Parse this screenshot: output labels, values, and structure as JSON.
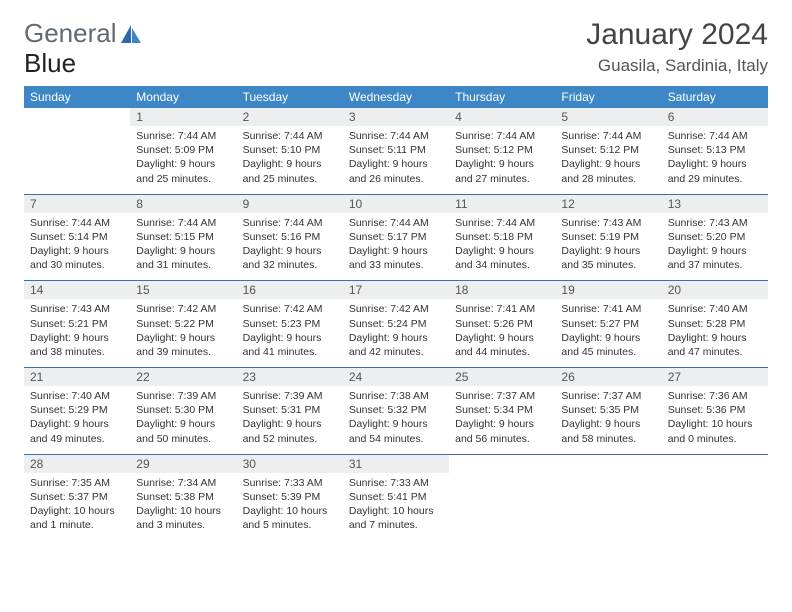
{
  "logo": {
    "text1": "General",
    "text2": "Blue"
  },
  "title": {
    "month": "January 2024",
    "location": "Guasila, Sardinia, Italy"
  },
  "colors": {
    "header_bg": "#3e87c6",
    "header_text": "#ffffff",
    "daynum_bg": "#eceef0",
    "row_border": "#3e6fa6",
    "logo_gray": "#5f6a72",
    "logo_blue": "#3e87c6",
    "page_bg": "#ffffff"
  },
  "fonts": {
    "title_size_pt": 22,
    "location_size_pt": 13,
    "header_size_pt": 9,
    "body_size_pt": 8
  },
  "days_of_week": [
    "Sunday",
    "Monday",
    "Tuesday",
    "Wednesday",
    "Thursday",
    "Friday",
    "Saturday"
  ],
  "weeks": [
    [
      null,
      {
        "n": "1",
        "sr": "Sunrise: 7:44 AM",
        "ss": "Sunset: 5:09 PM",
        "dl1": "Daylight: 9 hours",
        "dl2": "and 25 minutes."
      },
      {
        "n": "2",
        "sr": "Sunrise: 7:44 AM",
        "ss": "Sunset: 5:10 PM",
        "dl1": "Daylight: 9 hours",
        "dl2": "and 25 minutes."
      },
      {
        "n": "3",
        "sr": "Sunrise: 7:44 AM",
        "ss": "Sunset: 5:11 PM",
        "dl1": "Daylight: 9 hours",
        "dl2": "and 26 minutes."
      },
      {
        "n": "4",
        "sr": "Sunrise: 7:44 AM",
        "ss": "Sunset: 5:12 PM",
        "dl1": "Daylight: 9 hours",
        "dl2": "and 27 minutes."
      },
      {
        "n": "5",
        "sr": "Sunrise: 7:44 AM",
        "ss": "Sunset: 5:12 PM",
        "dl1": "Daylight: 9 hours",
        "dl2": "and 28 minutes."
      },
      {
        "n": "6",
        "sr": "Sunrise: 7:44 AM",
        "ss": "Sunset: 5:13 PM",
        "dl1": "Daylight: 9 hours",
        "dl2": "and 29 minutes."
      }
    ],
    [
      {
        "n": "7",
        "sr": "Sunrise: 7:44 AM",
        "ss": "Sunset: 5:14 PM",
        "dl1": "Daylight: 9 hours",
        "dl2": "and 30 minutes."
      },
      {
        "n": "8",
        "sr": "Sunrise: 7:44 AM",
        "ss": "Sunset: 5:15 PM",
        "dl1": "Daylight: 9 hours",
        "dl2": "and 31 minutes."
      },
      {
        "n": "9",
        "sr": "Sunrise: 7:44 AM",
        "ss": "Sunset: 5:16 PM",
        "dl1": "Daylight: 9 hours",
        "dl2": "and 32 minutes."
      },
      {
        "n": "10",
        "sr": "Sunrise: 7:44 AM",
        "ss": "Sunset: 5:17 PM",
        "dl1": "Daylight: 9 hours",
        "dl2": "and 33 minutes."
      },
      {
        "n": "11",
        "sr": "Sunrise: 7:44 AM",
        "ss": "Sunset: 5:18 PM",
        "dl1": "Daylight: 9 hours",
        "dl2": "and 34 minutes."
      },
      {
        "n": "12",
        "sr": "Sunrise: 7:43 AM",
        "ss": "Sunset: 5:19 PM",
        "dl1": "Daylight: 9 hours",
        "dl2": "and 35 minutes."
      },
      {
        "n": "13",
        "sr": "Sunrise: 7:43 AM",
        "ss": "Sunset: 5:20 PM",
        "dl1": "Daylight: 9 hours",
        "dl2": "and 37 minutes."
      }
    ],
    [
      {
        "n": "14",
        "sr": "Sunrise: 7:43 AM",
        "ss": "Sunset: 5:21 PM",
        "dl1": "Daylight: 9 hours",
        "dl2": "and 38 minutes."
      },
      {
        "n": "15",
        "sr": "Sunrise: 7:42 AM",
        "ss": "Sunset: 5:22 PM",
        "dl1": "Daylight: 9 hours",
        "dl2": "and 39 minutes."
      },
      {
        "n": "16",
        "sr": "Sunrise: 7:42 AM",
        "ss": "Sunset: 5:23 PM",
        "dl1": "Daylight: 9 hours",
        "dl2": "and 41 minutes."
      },
      {
        "n": "17",
        "sr": "Sunrise: 7:42 AM",
        "ss": "Sunset: 5:24 PM",
        "dl1": "Daylight: 9 hours",
        "dl2": "and 42 minutes."
      },
      {
        "n": "18",
        "sr": "Sunrise: 7:41 AM",
        "ss": "Sunset: 5:26 PM",
        "dl1": "Daylight: 9 hours",
        "dl2": "and 44 minutes."
      },
      {
        "n": "19",
        "sr": "Sunrise: 7:41 AM",
        "ss": "Sunset: 5:27 PM",
        "dl1": "Daylight: 9 hours",
        "dl2": "and 45 minutes."
      },
      {
        "n": "20",
        "sr": "Sunrise: 7:40 AM",
        "ss": "Sunset: 5:28 PM",
        "dl1": "Daylight: 9 hours",
        "dl2": "and 47 minutes."
      }
    ],
    [
      {
        "n": "21",
        "sr": "Sunrise: 7:40 AM",
        "ss": "Sunset: 5:29 PM",
        "dl1": "Daylight: 9 hours",
        "dl2": "and 49 minutes."
      },
      {
        "n": "22",
        "sr": "Sunrise: 7:39 AM",
        "ss": "Sunset: 5:30 PM",
        "dl1": "Daylight: 9 hours",
        "dl2": "and 50 minutes."
      },
      {
        "n": "23",
        "sr": "Sunrise: 7:39 AM",
        "ss": "Sunset: 5:31 PM",
        "dl1": "Daylight: 9 hours",
        "dl2": "and 52 minutes."
      },
      {
        "n": "24",
        "sr": "Sunrise: 7:38 AM",
        "ss": "Sunset: 5:32 PM",
        "dl1": "Daylight: 9 hours",
        "dl2": "and 54 minutes."
      },
      {
        "n": "25",
        "sr": "Sunrise: 7:37 AM",
        "ss": "Sunset: 5:34 PM",
        "dl1": "Daylight: 9 hours",
        "dl2": "and 56 minutes."
      },
      {
        "n": "26",
        "sr": "Sunrise: 7:37 AM",
        "ss": "Sunset: 5:35 PM",
        "dl1": "Daylight: 9 hours",
        "dl2": "and 58 minutes."
      },
      {
        "n": "27",
        "sr": "Sunrise: 7:36 AM",
        "ss": "Sunset: 5:36 PM",
        "dl1": "Daylight: 10 hours",
        "dl2": "and 0 minutes."
      }
    ],
    [
      {
        "n": "28",
        "sr": "Sunrise: 7:35 AM",
        "ss": "Sunset: 5:37 PM",
        "dl1": "Daylight: 10 hours",
        "dl2": "and 1 minute."
      },
      {
        "n": "29",
        "sr": "Sunrise: 7:34 AM",
        "ss": "Sunset: 5:38 PM",
        "dl1": "Daylight: 10 hours",
        "dl2": "and 3 minutes."
      },
      {
        "n": "30",
        "sr": "Sunrise: 7:33 AM",
        "ss": "Sunset: 5:39 PM",
        "dl1": "Daylight: 10 hours",
        "dl2": "and 5 minutes."
      },
      {
        "n": "31",
        "sr": "Sunrise: 7:33 AM",
        "ss": "Sunset: 5:41 PM",
        "dl1": "Daylight: 10 hours",
        "dl2": "and 7 minutes."
      },
      null,
      null,
      null
    ]
  ]
}
